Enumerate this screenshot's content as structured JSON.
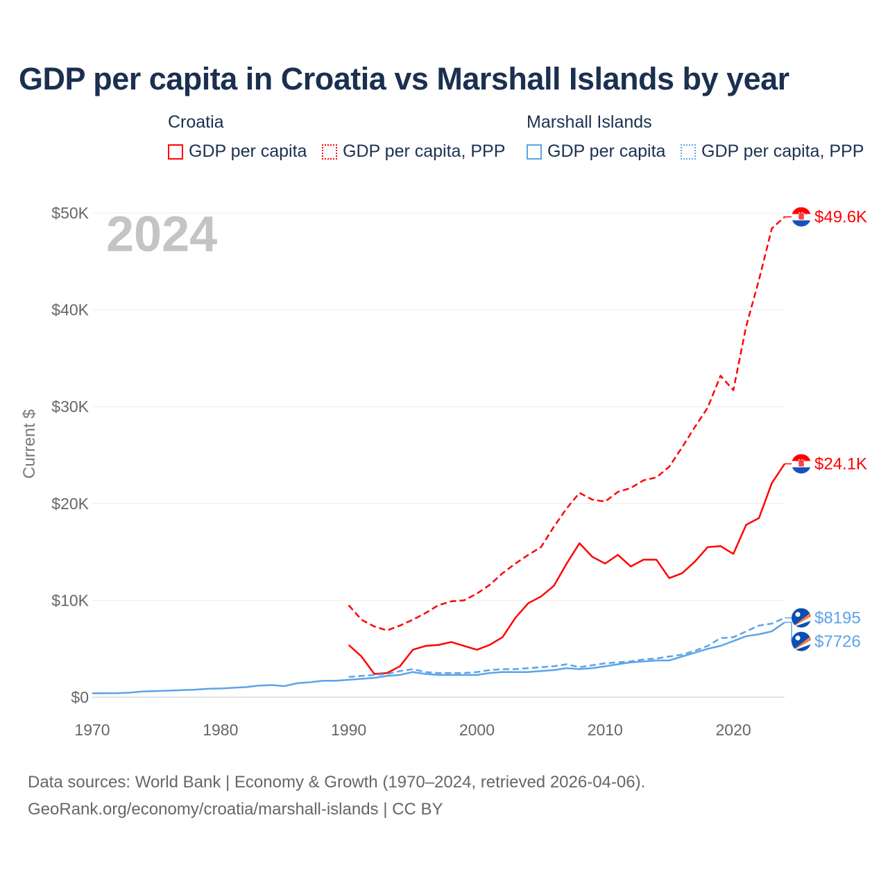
{
  "chart_data": {
    "type": "line",
    "title": "GDP per capita in Croatia vs Marshall Islands by year",
    "ylabel": "Current $",
    "xlabel": "",
    "xlim": [
      1970,
      2024
    ],
    "ylim": [
      0,
      50000
    ],
    "x_ticks": [
      1970,
      1980,
      1990,
      2000,
      2010,
      2020
    ],
    "x_tick_labels": [
      "1970",
      "1980",
      "1990",
      "2000",
      "2010",
      "2020"
    ],
    "y_ticks": [
      0,
      10000,
      20000,
      30000,
      40000,
      50000
    ],
    "y_tick_labels": [
      "$0",
      "$10K",
      "$20K",
      "$30K",
      "$40K",
      "$50K"
    ],
    "grid": true,
    "legend_position": "top",
    "year_watermark": "2024",
    "legend_groups": [
      {
        "country": "Croatia",
        "items": [
          "GDP per capita",
          "GDP per capita, PPP"
        ]
      },
      {
        "country": "Marshall Islands",
        "items": [
          "GDP per capita",
          "GDP per capita, PPP"
        ]
      }
    ],
    "series": [
      {
        "name": "Croatia GDP per capita",
        "color": "#ff0000",
        "dash": false,
        "end_label": "$24.1K",
        "flag": "croatia",
        "x_start": 1990,
        "values": [
          5400,
          4200,
          2400,
          2500,
          3200,
          4900,
          5300,
          5400,
          5700,
          5300,
          4900,
          5400,
          6200,
          8200,
          9700,
          10400,
          11500,
          13800,
          15900,
          14500,
          13800,
          14700,
          13500,
          14200,
          14200,
          12300,
          12800,
          14000,
          15500,
          15600,
          14800,
          17800,
          18500,
          22100,
          24100
        ]
      },
      {
        "name": "Croatia GDP per capita, PPP",
        "color": "#ff0000",
        "dash": true,
        "end_label": "$49.6K",
        "flag": "croatia",
        "x_start": 1990,
        "values": [
          9500,
          8000,
          7300,
          6900,
          7400,
          8000,
          8700,
          9500,
          9900,
          10000,
          10700,
          11600,
          12800,
          13800,
          14700,
          15500,
          17600,
          19500,
          21100,
          20400,
          20200,
          21200,
          21600,
          22400,
          22700,
          23800,
          25800,
          27900,
          29900,
          33200,
          31700,
          38300,
          43100,
          48400,
          49600
        ]
      },
      {
        "name": "Marshall Islands GDP per capita",
        "color": "#5ba3e8",
        "dash": false,
        "end_label": "$7726",
        "flag": "marshall-islands",
        "x_start": 1970,
        "values": [
          400,
          410,
          420,
          480,
          600,
          640,
          680,
          730,
          780,
          870,
          900,
          980,
          1050,
          1200,
          1250,
          1150,
          1450,
          1550,
          1700,
          1700,
          1800,
          1900,
          2000,
          2200,
          2300,
          2600,
          2400,
          2300,
          2300,
          2300,
          2300,
          2500,
          2600,
          2600,
          2600,
          2700,
          2800,
          3000,
          2900,
          3000,
          3200,
          3400,
          3600,
          3700,
          3800,
          3800,
          4200,
          4600,
          5000,
          5300,
          5800,
          6300,
          6500,
          6800,
          7726
        ]
      },
      {
        "name": "Marshall Islands GDP per capita, PPP",
        "color": "#5ba3e8",
        "dash": true,
        "end_label": "$8195",
        "flag": "marshall-islands",
        "x_start": 1990,
        "values": [
          2100,
          2200,
          2300,
          2400,
          2700,
          2900,
          2600,
          2500,
          2500,
          2500,
          2600,
          2800,
          2900,
          2900,
          3000,
          3100,
          3200,
          3400,
          3100,
          3300,
          3500,
          3600,
          3700,
          3900,
          4000,
          4200,
          4400,
          4800,
          5300,
          6100,
          6200,
          6800,
          7400,
          7600,
          8195
        ]
      }
    ]
  },
  "legend": {
    "croatia_label": "Croatia",
    "marshall_label": "Marshall Islands",
    "gdp_label": "GDP per capita",
    "ppp_label": "GDP per capita, PPP"
  },
  "source": {
    "line1": "Data sources: World Bank | Economy & Growth (1970–2024, retrieved 2026-04-06).",
    "line2": "GeoRank.org/economy/croatia/marshall-islands | CC BY"
  }
}
